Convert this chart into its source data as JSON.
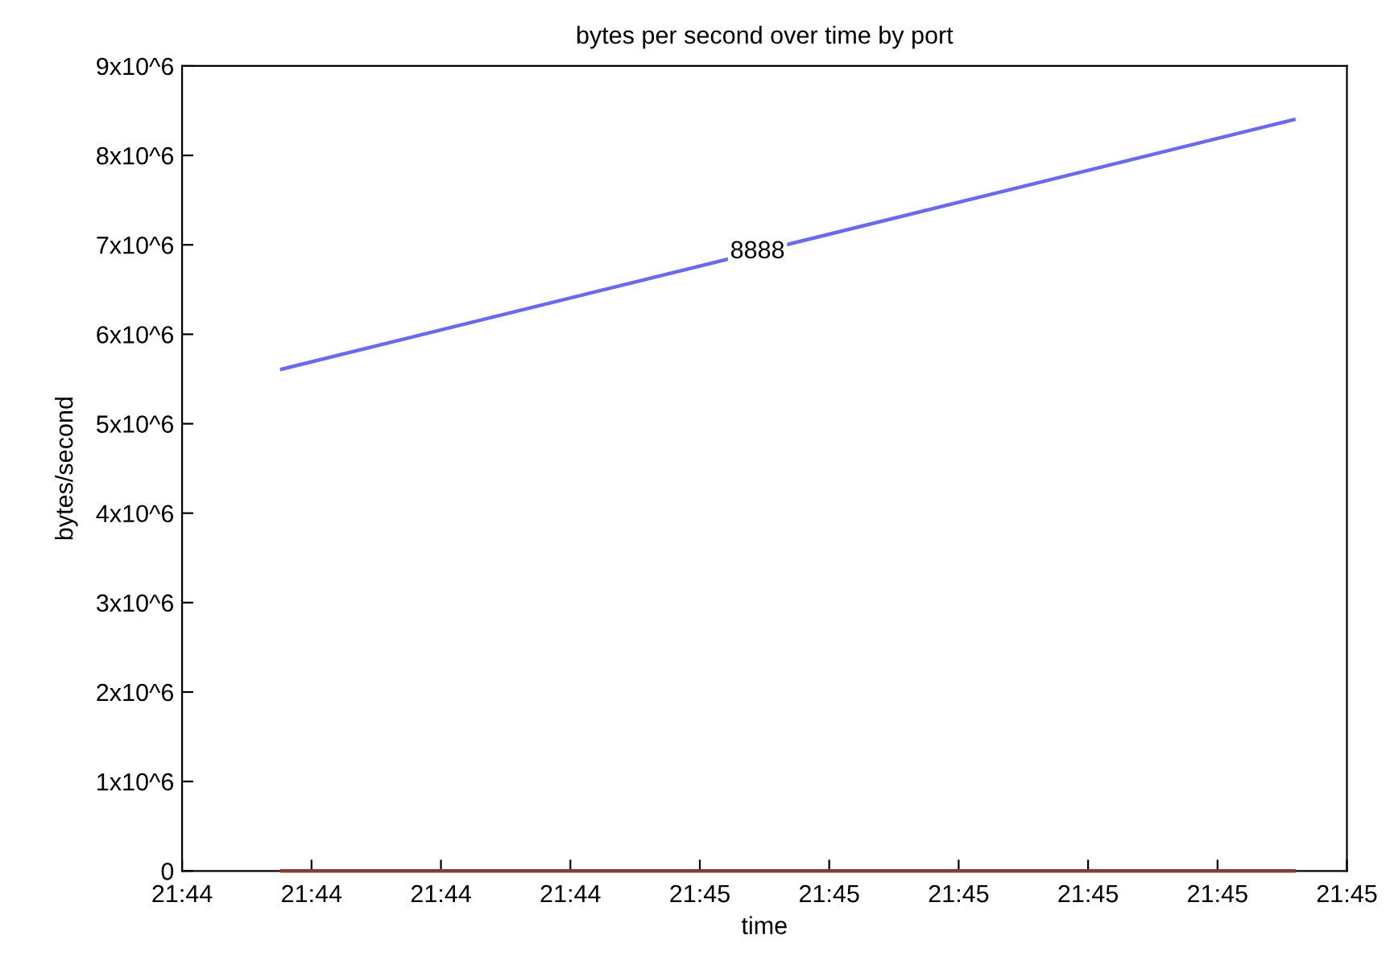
{
  "chart_data": {
    "type": "line",
    "title": "bytes per second over time by port",
    "xlabel": "time",
    "ylabel": "bytes/second",
    "x": [
      21.734084,
      21.755806
    ],
    "series": [
      {
        "name": "8888",
        "color": "#6a6aee",
        "values": [
          5610000,
          8400000
        ]
      },
      {
        "color": "#8b3a3a",
        "values": [
          0,
          0
        ]
      }
    ],
    "xlim": [
      21.731944,
      21.756944
    ],
    "xticks": [
      {
        "value": 21.731944,
        "label": "21:44"
      },
      {
        "value": 21.734722,
        "label": "21:44"
      },
      {
        "value": 21.7375,
        "label": "21:44"
      },
      {
        "value": 21.740278,
        "label": "21:44"
      },
      {
        "value": 21.743056,
        "label": "21:45"
      },
      {
        "value": 21.745833,
        "label": "21:45"
      },
      {
        "value": 21.748611,
        "label": "21:45"
      },
      {
        "value": 21.751389,
        "label": "21:45"
      },
      {
        "value": 21.754167,
        "label": "21:45"
      },
      {
        "value": 21.756944,
        "label": "21:45"
      }
    ],
    "ylim": [
      0,
      9000000
    ],
    "yticks": [
      0,
      {
        "value": 1000000,
        "label": "1x10^6"
      },
      {
        "value": 2000000,
        "label": "2x10^6"
      },
      {
        "value": 3000000,
        "label": "3x10^6"
      },
      {
        "value": 4000000,
        "label": "4x10^6"
      },
      {
        "value": 5000000,
        "label": "5x10^6"
      },
      {
        "value": 6000000,
        "label": "6x10^6"
      },
      {
        "value": 7000000,
        "label": "7x10^6"
      },
      {
        "value": 8000000,
        "label": "8x10^6"
      },
      {
        "value": 9000000,
        "label": "9x10^6"
      }
    ],
    "grid": false,
    "legend": false
  }
}
